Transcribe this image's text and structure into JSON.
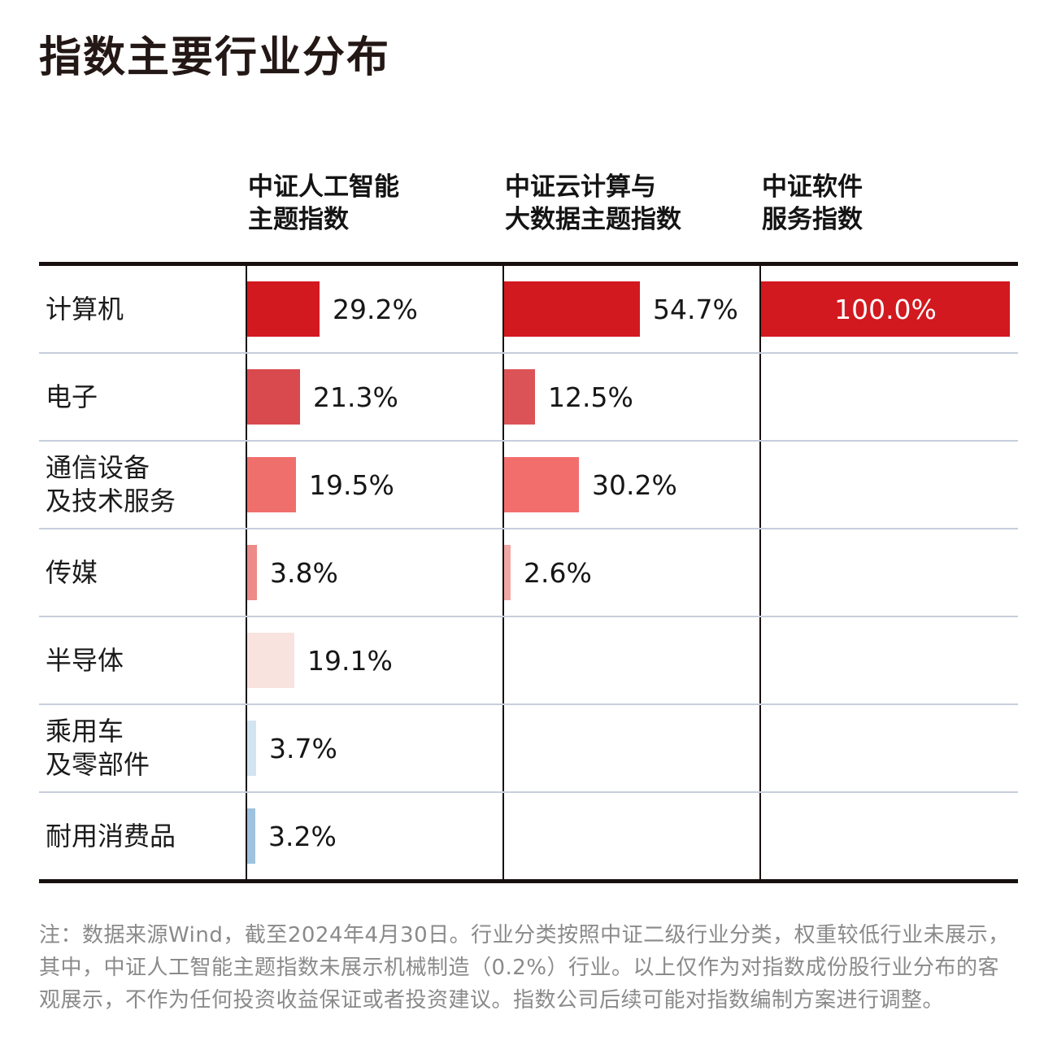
{
  "title": "指数主要行业分布",
  "note": "注：数据来源Wind，截至2024年4月30日。行业分类按照中证二级行业分类，权重较低行业未展示，其中，中证人工智能主题指数未展示机械制造（0.2%）行业。以上仅作为对指数成份股行业分布的客观展示，不作为任何投资收益保证或者投资建议。指数公司后续可能对指数编制方案进行调整。",
  "colors": {
    "title_text": "#231815",
    "header_text": "#141414",
    "label_text": "#1b1b1b",
    "value_text": "#161616",
    "value_text_inside": "#ffffff",
    "frame_line": "#17100e",
    "row_divider": "#c7cedb",
    "note_text": "#8a8a8a",
    "background": "#ffffff"
  },
  "chart_data": {
    "type": "bar",
    "orientation": "horizontal",
    "unit": "%",
    "xlim": [
      0,
      100
    ],
    "title": "指数主要行业分布",
    "legend_position": "column-headers",
    "grid": "horizontal-row-dividers",
    "categories": [
      "计算机",
      "电子",
      "通信设备及技术服务",
      "传媒",
      "半导体",
      "乘用车及零部件",
      "耐用消费品"
    ],
    "category_labels": [
      "计算机",
      "电子",
      "通信设备\n及技术服务",
      "传媒",
      "半导体",
      "乘用车\n及零部件",
      "耐用消费品"
    ],
    "series": [
      {
        "name": "中证人工智能主题指数",
        "header": "中证人工智能\n主题指数",
        "values": [
          29.2,
          21.3,
          19.5,
          3.8,
          19.1,
          3.7,
          3.2
        ],
        "labels": [
          "29.2%",
          "21.3%",
          "19.5%",
          "3.8%",
          "19.1%",
          "3.7%",
          "3.2%"
        ],
        "bar_colors": [
          "#d2191f",
          "#d84a4e",
          "#ef6f6c",
          "#ec8b87",
          "#f8e3df",
          "#d3e4f1",
          "#9fc2df"
        ],
        "label_inside": [
          false,
          false,
          false,
          false,
          false,
          false,
          false
        ]
      },
      {
        "name": "中证云计算与大数据主题指数",
        "header": "中证云计算与\n大数据主题指数",
        "values": [
          54.7,
          12.5,
          30.2,
          2.6,
          null,
          null,
          null
        ],
        "labels": [
          "54.7%",
          "12.5%",
          "30.2%",
          "2.6%",
          null,
          null,
          null
        ],
        "bar_colors": [
          "#d2191f",
          "#dc5357",
          "#f26e6c",
          "#f1a7a3",
          null,
          null,
          null
        ],
        "label_inside": [
          false,
          false,
          false,
          false,
          false,
          false,
          false
        ]
      },
      {
        "name": "中证软件服务指数",
        "header": "中证软件\n服务指数",
        "values": [
          100.0,
          null,
          null,
          null,
          null,
          null,
          null
        ],
        "labels": [
          "100.0%",
          null,
          null,
          null,
          null,
          null,
          null
        ],
        "bar_colors": [
          "#d2191f",
          null,
          null,
          null,
          null,
          null,
          null
        ],
        "label_inside": [
          true,
          false,
          false,
          false,
          false,
          false,
          false
        ]
      }
    ]
  }
}
